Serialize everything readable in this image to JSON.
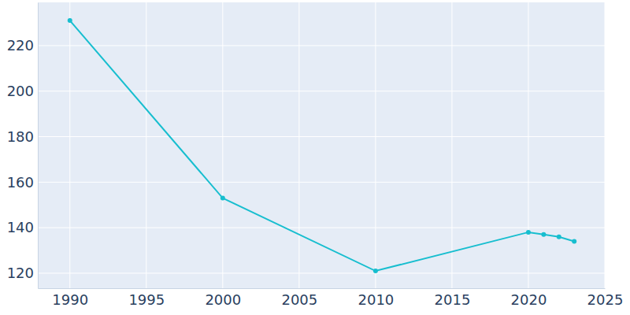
{
  "chart_data": {
    "type": "line",
    "x": [
      1990,
      2000,
      2010,
      2020,
      2021,
      2022,
      2023
    ],
    "values": [
      231,
      153,
      121,
      138,
      137,
      136,
      134
    ],
    "color": "#17becf",
    "marker": "circle",
    "xlim": [
      1987.9,
      2025
    ],
    "xticks": [
      1990,
      1995,
      2000,
      2005,
      2010,
      2015,
      2020,
      2025
    ],
    "ylim": [
      113.4,
      239
    ],
    "yticks": [
      120,
      140,
      160,
      180,
      200,
      220
    ],
    "grid": true
  }
}
